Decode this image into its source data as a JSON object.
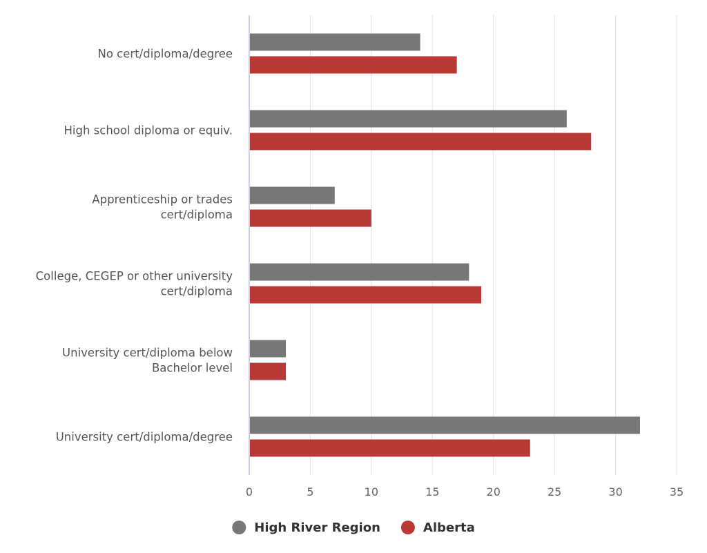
{
  "chart_data": {
    "type": "bar",
    "orientation": "horizontal",
    "categories": [
      [
        "No cert/diploma/degree"
      ],
      [
        "High school diploma or equiv."
      ],
      [
        "Apprenticeship or trades",
        "cert/diploma"
      ],
      [
        "College, CEGEP or other university",
        "cert/diploma"
      ],
      [
        "University cert/diploma below",
        "Bachelor level"
      ],
      [
        "University cert/diploma/degree"
      ]
    ],
    "series": [
      {
        "name": "High River Region",
        "color": "#777777",
        "values": [
          14,
          26,
          7,
          18,
          3,
          32
        ]
      },
      {
        "name": "Alberta",
        "color": "#b83a36",
        "values": [
          17,
          28,
          10,
          19,
          3,
          23
        ]
      }
    ],
    "xlim": [
      0,
      35
    ],
    "xticks": [
      "0",
      "5",
      "10",
      "15",
      "20",
      "25",
      "30",
      "35"
    ],
    "title": "",
    "xlabel": "",
    "ylabel": "",
    "grid": true,
    "legend_position": "bottom-center"
  }
}
